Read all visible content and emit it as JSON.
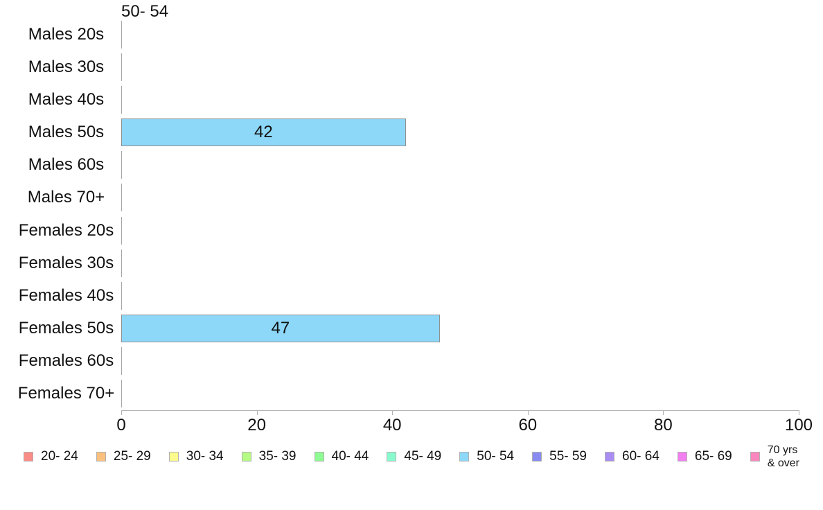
{
  "page": {
    "background": "#ffffff",
    "text_color": "#111111"
  },
  "chart_data": {
    "type": "bar",
    "orientation": "horizontal",
    "title": "50- 54",
    "categories": [
      "Males 20s",
      "Males 30s",
      "Males 40s",
      "Males 50s",
      "Males 60s",
      "Males 70+",
      "Females 20s",
      "Females 30s",
      "Females 40s",
      "Females 50s",
      "Females 60s",
      "Females 70+"
    ],
    "values": [
      0,
      0,
      0,
      42,
      0,
      0,
      0,
      0,
      0,
      47,
      0,
      0
    ],
    "shown_value_labels": [
      "42",
      "47"
    ],
    "xlabel": "",
    "ylabel": "",
    "xlim": [
      0,
      100
    ],
    "x_ticks": [
      0,
      20,
      40,
      60,
      80,
      100
    ],
    "grid": "off",
    "bar_color": "#8DD8F8",
    "bar_border_color": "#8F8F8F",
    "zero_line_color": "#A6A6A6",
    "axis_color": "#B3B3B3",
    "legend_position": "bottom",
    "legend": {
      "items": [
        {
          "label": "20- 24",
          "color": "#F98C87"
        },
        {
          "label": "25- 29",
          "color": "#FBC07E"
        },
        {
          "label": "30- 34",
          "color": "#FBFB8E"
        },
        {
          "label": "35- 39",
          "color": "#B5FA85"
        },
        {
          "label": "40- 44",
          "color": "#8EFB93"
        },
        {
          "label": "45- 49",
          "color": "#88FACD"
        },
        {
          "label": "50- 54",
          "color": "#8DD8F8"
        },
        {
          "label": "55- 59",
          "color": "#898BF0"
        },
        {
          "label": "60- 64",
          "color": "#AA8DF2"
        },
        {
          "label": "65- 69",
          "color": "#F27FF0"
        },
        {
          "label": "70 yrs & over",
          "color": "#F987BD",
          "lines": [
            "70 yrs",
            "& over"
          ]
        }
      ]
    }
  }
}
